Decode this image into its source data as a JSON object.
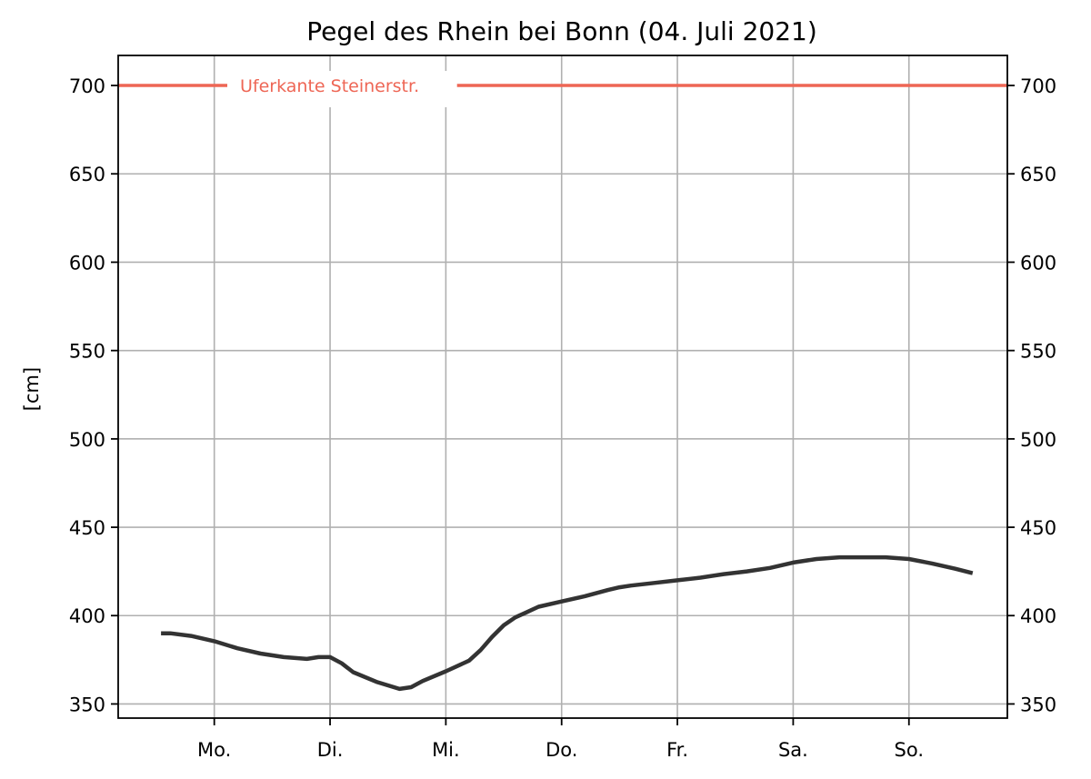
{
  "chart_data": {
    "type": "line",
    "title": "Pegel des Rhein bei Bonn (04. Juli 2021)",
    "ylabel": "[cm]",
    "xlabel": "",
    "ylim": [
      342,
      717
    ],
    "xlim": [
      -0.83,
      6.85
    ],
    "yticks": [
      350,
      400,
      450,
      500,
      550,
      600,
      650,
      700
    ],
    "xticks": [
      {
        "label": "Mo.",
        "value": 0
      },
      {
        "label": "Di.",
        "value": 1
      },
      {
        "label": "Mi.",
        "value": 2
      },
      {
        "label": "Do.",
        "value": 3
      },
      {
        "label": "Fr.",
        "value": 4
      },
      {
        "label": "Sa.",
        "value": 5
      },
      {
        "label": "So.",
        "value": 6
      }
    ],
    "grid": true,
    "right_axis_mirrors_left": true,
    "reference_line": {
      "label": "Uferkante Steinerstr.",
      "value": 700,
      "color": "#ee6655"
    },
    "series": [
      {
        "color": "#333333",
        "x": [
          -0.46,
          -0.38,
          -0.2,
          0,
          0.2,
          0.4,
          0.6,
          0.8,
          0.9,
          1.0,
          1.1,
          1.2,
          1.4,
          1.6,
          1.7,
          1.8,
          2.0,
          2.2,
          2.3,
          2.4,
          2.5,
          2.6,
          2.7,
          2.8,
          3.0,
          3.2,
          3.4,
          3.5,
          3.6,
          3.8,
          4.0,
          4.2,
          4.4,
          4.6,
          4.8,
          5.0,
          5.2,
          5.4,
          5.6,
          5.8,
          6.0,
          6.2,
          6.4,
          6.55
        ],
        "y": [
          390,
          390,
          388.5,
          385.5,
          381.5,
          378.5,
          376.5,
          375.5,
          376.5,
          376.5,
          373,
          368,
          362.5,
          358.5,
          359.5,
          363,
          368.5,
          374.5,
          380.5,
          388,
          394.5,
          399,
          402,
          405,
          408,
          411,
          414.5,
          416,
          417,
          418.5,
          420,
          421.5,
          423.5,
          425,
          427,
          430,
          432,
          433,
          433,
          433,
          432,
          429.5,
          426.5,
          424
        ]
      }
    ]
  }
}
